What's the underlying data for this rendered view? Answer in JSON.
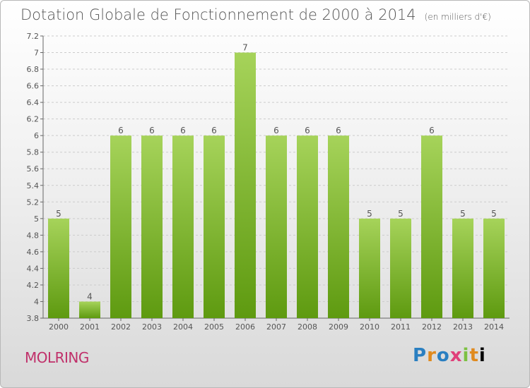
{
  "header": {
    "title": "Dotation Globale de Fonctionnement de 2000 à 2014",
    "unit": "(en milliers d'€)"
  },
  "footer": {
    "place": "MOLRING",
    "logo": "Proxiti"
  },
  "colors": {
    "bar_top": "#a6d35a",
    "bar_bottom": "#5e9a10",
    "grid": "#cccccc",
    "text": "#555555"
  },
  "chart_data": {
    "type": "bar",
    "title": "Dotation Globale de Fonctionnement de 2000 à 2014",
    "subtitle": "(en milliers d'€)",
    "categories": [
      "2000",
      "2001",
      "2002",
      "2003",
      "2004",
      "2005",
      "2006",
      "2007",
      "2008",
      "2009",
      "2010",
      "2011",
      "2012",
      "2013",
      "2014"
    ],
    "values": [
      5,
      4,
      6,
      6,
      6,
      6,
      7,
      6,
      6,
      6,
      5,
      5,
      6,
      5,
      5
    ],
    "data_labels": [
      "5",
      "4",
      "6",
      "6",
      "6",
      "6",
      "7",
      "6",
      "6",
      "6",
      "5",
      "5",
      "6",
      "5",
      "5"
    ],
    "ylim": [
      3.8,
      7.2
    ],
    "yticks": [
      3.8,
      4,
      4.2,
      4.4,
      4.6,
      4.8,
      5,
      5.2,
      5.4,
      5.6,
      5.8,
      6,
      6.2,
      6.4,
      6.6,
      6.8,
      7,
      7.2
    ],
    "ytick_labels": [
      "3.8",
      "4",
      "4.2",
      "4.4",
      "4.6",
      "4.8",
      "5",
      "5.2",
      "5.4",
      "5.6",
      "5.8",
      "6",
      "6.2",
      "6.4",
      "6.6",
      "6.8",
      "7",
      "7.2"
    ],
    "grid": true,
    "legend": "none"
  }
}
